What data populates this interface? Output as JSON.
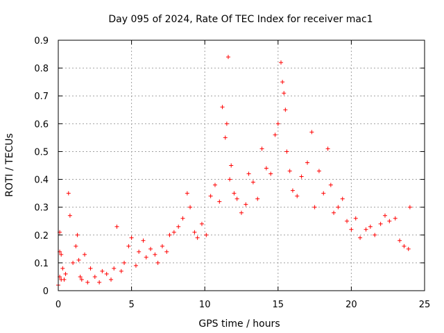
{
  "chart_data": {
    "type": "scatter",
    "title": "Day 095 of 2024, Rate Of TEC Index for receiver mac1",
    "xlabel": "GPS time / hours",
    "ylabel": "ROTI / TECUs",
    "xlim": [
      0,
      25
    ],
    "ylim": [
      0,
      0.9
    ],
    "x_ticks": [
      0,
      5,
      10,
      15,
      20,
      25
    ],
    "x_tick_labels": [
      "0",
      "5",
      "10",
      "15",
      "20",
      "25"
    ],
    "y_ticks": [
      0,
      0.1,
      0.2,
      0.3,
      0.4,
      0.5,
      0.6,
      0.7,
      0.8,
      0.9
    ],
    "y_tick_labels": [
      "0",
      "0.1",
      "0.2",
      "0.3",
      "0.4",
      "0.5",
      "0.6",
      "0.7",
      "0.8",
      "0.9"
    ],
    "grid": true,
    "marker": "plus",
    "color": "#ff0000",
    "series": [
      {
        "x": [
          0.0,
          0.1,
          0.1,
          0.1,
          0.2,
          0.2,
          0.3,
          0.4,
          0.5,
          0.7,
          0.8,
          1.0,
          1.2,
          1.3,
          1.4,
          1.5,
          1.6,
          1.8,
          2.0,
          2.2,
          2.5,
          2.8,
          3.0,
          3.3,
          3.6,
          3.8,
          4.0,
          4.3,
          4.5,
          4.8,
          5.0,
          5.3,
          5.5,
          5.8,
          6.0,
          6.3,
          6.6,
          6.8,
          7.1,
          7.4,
          7.6,
          7.9,
          8.2,
          8.5,
          8.8,
          9.0,
          9.3,
          9.5,
          9.8,
          10.1,
          10.4,
          10.7,
          11.0,
          11.2,
          11.4,
          11.5,
          11.6,
          11.7,
          11.8,
          12.0,
          12.2,
          12.5,
          12.8,
          13.0,
          13.3,
          13.6,
          13.9,
          14.2,
          14.5,
          14.8,
          15.0,
          15.2,
          15.3,
          15.4,
          15.5,
          15.6,
          15.8,
          16.0,
          16.3,
          16.6,
          17.0,
          17.3,
          17.5,
          17.8,
          18.1,
          18.4,
          18.6,
          18.8,
          19.1,
          19.4,
          19.7,
          20.0,
          20.3,
          20.6,
          21.0,
          21.3,
          21.6,
          22.0,
          22.3,
          22.6,
          23.0,
          23.3,
          23.6,
          23.9,
          24.0
        ],
        "y": [
          0.02,
          0.21,
          0.14,
          0.05,
          0.04,
          0.13,
          0.08,
          0.04,
          0.06,
          0.35,
          0.27,
          0.1,
          0.16,
          0.2,
          0.11,
          0.05,
          0.04,
          0.13,
          0.03,
          0.08,
          0.05,
          0.03,
          0.07,
          0.06,
          0.04,
          0.08,
          0.23,
          0.07,
          0.1,
          0.16,
          0.19,
          0.09,
          0.14,
          0.18,
          0.12,
          0.15,
          0.13,
          0.1,
          0.16,
          0.14,
          0.2,
          0.21,
          0.23,
          0.26,
          0.35,
          0.3,
          0.21,
          0.19,
          0.24,
          0.2,
          0.34,
          0.38,
          0.32,
          0.66,
          0.55,
          0.6,
          0.84,
          0.4,
          0.45,
          0.35,
          0.33,
          0.28,
          0.31,
          0.42,
          0.39,
          0.33,
          0.51,
          0.44,
          0.42,
          0.56,
          0.6,
          0.82,
          0.75,
          0.71,
          0.65,
          0.5,
          0.43,
          0.36,
          0.34,
          0.41,
          0.46,
          0.57,
          0.3,
          0.43,
          0.35,
          0.51,
          0.38,
          0.28,
          0.3,
          0.33,
          0.25,
          0.22,
          0.26,
          0.19,
          0.22,
          0.23,
          0.2,
          0.24,
          0.27,
          0.25,
          0.26,
          0.18,
          0.16,
          0.15,
          0.3
        ]
      }
    ]
  }
}
